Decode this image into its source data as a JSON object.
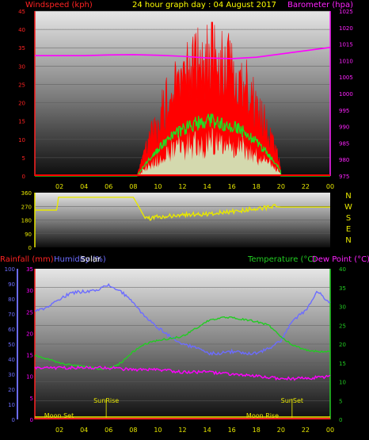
{
  "title": "24 hour graph day : 04 August 2017",
  "colors": {
    "wind": "#ff0000",
    "gust": "#ff0000",
    "windavg": "#22dd22",
    "windlow": "#ccffcc",
    "baro": "#ff00ff",
    "dir": "#e8e800",
    "tick": "#d8d800",
    "rain": "#ff2222",
    "humidity": "#6c6cff",
    "solar": "#ffffff",
    "temp": "#22cc22",
    "dew": "#ff00ff",
    "lower": "#ff00ff",
    "sun": "#e8e800",
    "moon": "#e8e800"
  },
  "chart_data": [
    {
      "type": "line",
      "name_left": "Windspeed (kph)",
      "name_right": "Barometer (hpa)",
      "x_ticks": [
        "02",
        "04",
        "06",
        "08",
        "10",
        "12",
        "14",
        "16",
        "18",
        "20",
        "22",
        "00"
      ],
      "y_left_ticks": [
        0,
        5,
        10,
        15,
        20,
        25,
        30,
        35,
        40,
        45
      ],
      "y_right_ticks": [
        975,
        980,
        985,
        990,
        995,
        1000,
        1005,
        1010,
        1015,
        1020,
        1025
      ],
      "ylim_left": [
        0,
        45
      ],
      "ylim_right": [
        975,
        1025
      ],
      "barometer": {
        "hours": [
          0,
          2,
          4,
          6,
          8,
          10,
          12,
          14,
          16,
          18,
          20,
          22,
          24
        ],
        "values": [
          1011.5,
          1011.5,
          1011.5,
          1011.7,
          1011.8,
          1011.6,
          1011.3,
          1010.8,
          1010.6,
          1011.0,
          1012.0,
          1013.0,
          1014.0
        ]
      },
      "wind_active_hours": [
        8.0,
        20.0
      ],
      "wind_gust_peak": 42,
      "wind_avg_peak": 17
    },
    {
      "type": "line",
      "name_right": [
        "N",
        "W",
        "S",
        "E",
        "N"
      ],
      "y_ticks": [
        0,
        90,
        180,
        270,
        360
      ],
      "ylim": [
        0,
        360
      ],
      "direction": {
        "hours": [
          0,
          1.8,
          1.9,
          8.0,
          8.5,
          9,
          10,
          12,
          14,
          16,
          18,
          19.5,
          20,
          21,
          22,
          23,
          24
        ],
        "values": [
          245,
          245,
          330,
          330,
          260,
          185,
          200,
          215,
          220,
          235,
          255,
          268,
          265,
          265,
          265,
          265,
          265
        ]
      }
    },
    {
      "type": "line",
      "labels_left": [
        "Rainfall (mm)",
        "Humidity (%)",
        "Solar"
      ],
      "labels_right": [
        "Temperature (°C)",
        "Dew Point (°C)"
      ],
      "humidity_ticks": [
        0,
        10,
        20,
        30,
        40,
        50,
        60,
        70,
        80,
        90,
        100
      ],
      "lower_ticks": [
        0,
        5,
        10,
        15,
        20,
        25,
        30,
        35
      ],
      "temp_ticks": [
        0,
        5,
        10,
        15,
        20,
        25,
        30,
        35,
        40
      ],
      "humidity": {
        "hours": [
          0,
          1,
          2,
          3,
          4,
          5,
          6,
          7,
          8,
          9,
          10,
          11,
          12,
          13,
          14,
          15,
          16,
          17,
          18,
          19,
          20,
          20.5,
          21,
          22,
          22.5,
          23,
          23.5,
          24
        ],
        "values": [
          72,
          74,
          80,
          84,
          85,
          86,
          89,
          85,
          77,
          68,
          61,
          55,
          50,
          48,
          44,
          44,
          45,
          44,
          44,
          47,
          52,
          60,
          66,
          72,
          79,
          85,
          80,
          78
        ]
      },
      "temperature": {
        "hours": [
          0,
          1,
          2,
          3,
          4,
          5,
          6,
          7,
          8,
          9,
          10,
          11,
          12,
          13,
          14,
          15,
          16,
          17,
          18,
          19,
          20,
          21,
          22,
          23,
          24
        ],
        "values": [
          17,
          16,
          15,
          14.5,
          14,
          13.5,
          13.5,
          15,
          18,
          20,
          21,
          21.5,
          22,
          24,
          26,
          27,
          27,
          26.5,
          26,
          25,
          22,
          19.5,
          18.5,
          18,
          18
        ]
      },
      "dew_point": {
        "hours": [
          0,
          2,
          4,
          6,
          8,
          10,
          12,
          14,
          16,
          18,
          20,
          22,
          24
        ],
        "values": [
          12,
          12,
          12,
          12,
          11.5,
          11.5,
          11,
          11,
          10.5,
          10,
          9.5,
          9.5,
          10
        ]
      },
      "sun_rise_label": "SunRise",
      "sun_set_label": "SunSet",
      "moon_set_label": "Moon Set",
      "moon_rise_label": "Moon Rise",
      "sun_rise_hour": 5.8,
      "sun_set_hour": 20.9,
      "moon_set_hour": 0.5,
      "moon_rise_hour": 18.5
    }
  ]
}
